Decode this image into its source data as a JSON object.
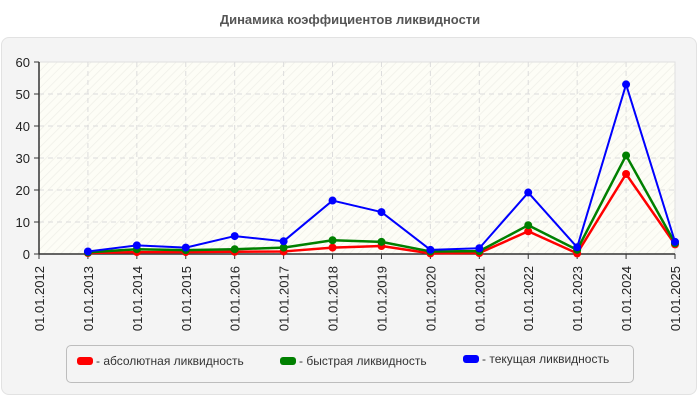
{
  "title": "Динамика коэффициентов ликвидности",
  "legend": [
    {
      "label": "- абсолютная ликвидность",
      "color": "#ff0000"
    },
    {
      "label": "- быстрая ликвидность",
      "color": "#008000"
    },
    {
      "label": "- текущая ликвидность",
      "color": "#0000ff"
    }
  ],
  "chart_data": {
    "type": "line",
    "title": "Динамика коэффициентов ликвидности",
    "xlabel": "",
    "ylabel": "",
    "ylim": [
      0,
      60
    ],
    "yticks": [
      0,
      10,
      20,
      30,
      40,
      50,
      60
    ],
    "grid": true,
    "legend_position": "bottom",
    "categories": [
      "01.01.2012",
      "01.01.2013",
      "01.01.2014",
      "01.01.2015",
      "01.01.2016",
      "01.01.2017",
      "01.01.2018",
      "01.01.2019",
      "01.01.2020",
      "01.01.2021",
      "01.01.2022",
      "01.01.2023",
      "01.01.2024",
      "01.01.2025"
    ],
    "series": [
      {
        "name": "абсолютная ликвидность",
        "color": "#ff0000",
        "values": [
          null,
          0.3,
          0.6,
          0.6,
          0.7,
          0.8,
          2.0,
          2.5,
          0.2,
          0.3,
          7.1,
          0.2,
          25.0,
          3.0
        ]
      },
      {
        "name": "быстрая ликвидность",
        "color": "#008000",
        "values": [
          null,
          0.5,
          1.5,
          1.2,
          1.5,
          2.0,
          4.3,
          3.8,
          0.8,
          0.9,
          9.0,
          1.3,
          30.8,
          3.4
        ]
      },
      {
        "name": "текущая ликвидность",
        "color": "#0000ff",
        "values": [
          null,
          0.8,
          2.7,
          2.0,
          5.6,
          4.0,
          16.7,
          13.1,
          1.3,
          1.8,
          19.2,
          2.1,
          53.0,
          3.8
        ]
      }
    ]
  }
}
